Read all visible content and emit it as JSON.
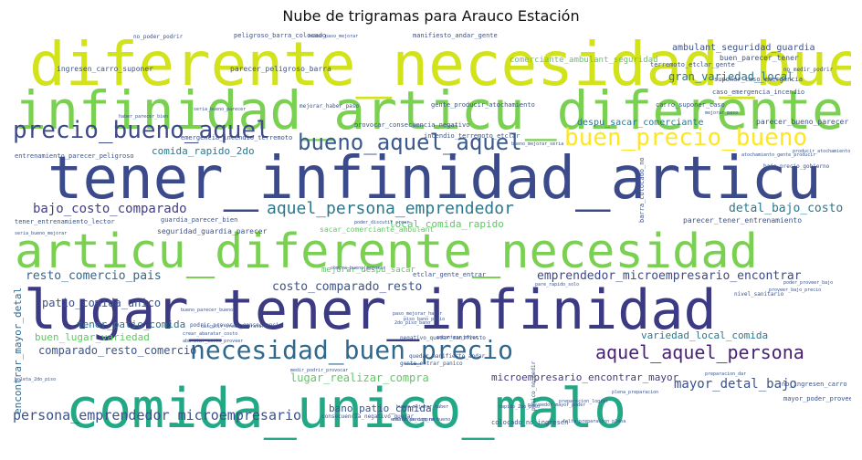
{
  "title": "Nube de trigramas para Arauco Estación",
  "words": [
    {
      "text": "diferente_necesidad_buen",
      "color": "#d2e21b"
    },
    {
      "text": "infinidad_articu_diferente",
      "color": "#7ad151"
    },
    {
      "text": "tener_infinidad_articu",
      "color": "#3b4a8a"
    },
    {
      "text": "articu_diferente_necesidad",
      "color": "#7ad151"
    },
    {
      "text": "lugar_tener_infinidad",
      "color": "#3b3a83"
    },
    {
      "text": "comida_unico_malo",
      "color": "#22a884"
    },
    {
      "text": "necesidad_buen_precio",
      "color": "#31688e"
    },
    {
      "text": "precio_bueno_aquel",
      "color": "#3e4a89"
    },
    {
      "text": "bueno_aquel_aquel",
      "color": "#3b5a8c"
    },
    {
      "text": "buen_precio_bueno",
      "color": "#fde725"
    },
    {
      "text": "aquel_aquel_persona",
      "color": "#482173"
    },
    {
      "text": "aquel_persona_emprendedor",
      "color": "#2a788e"
    },
    {
      "text": "persona_emprendedor_microempresario",
      "color": "#3b528b"
    },
    {
      "text": "emprendedor_microempresario_encontrar",
      "color": "#3e4989"
    },
    {
      "text": "bajo_costo_comparado",
      "color": "#424086"
    },
    {
      "text": "detal_bajo_costo",
      "color": "#2a788e"
    },
    {
      "text": "costo_comparado_resto",
      "color": "#3b528b"
    },
    {
      "text": "resto_comercio_pais",
      "color": "#31688e"
    },
    {
      "text": "patio_comida_unico",
      "color": "#3b528b"
    },
    {
      "text": "variedad_local_comida",
      "color": "#2a788e"
    },
    {
      "text": "microempresario_encontrar_mayor",
      "color": "#443a83"
    },
    {
      "text": "mayor_detal_bajo",
      "color": "#3b528b"
    },
    {
      "text": "comparado_resto_comercio",
      "color": "#3b528b"
    },
    {
      "text": "tener_patio_comida",
      "color": "#2c728e"
    },
    {
      "text": "buen_lugar_variedad",
      "color": "#5ec962"
    },
    {
      "text": "lugar_realizar_compra",
      "color": "#5ec962"
    },
    {
      "text": "bano_patio_comida",
      "color": "#3b528b"
    },
    {
      "text": "encontrar_mayor_detal",
      "color": "#31688e"
    },
    {
      "text": "gran_variedad_local",
      "color": "#2a788e"
    },
    {
      "text": "local_comida_rapido",
      "color": "#5ec962"
    },
    {
      "text": "comida_rapido_2do",
      "color": "#2a788e"
    },
    {
      "text": "ambulant_seguridad_guardia",
      "color": "#3b528b"
    },
    {
      "text": "comerciante_ambulant_seguridad",
      "color": "#5ec962"
    },
    {
      "text": "buen_parecer_tener",
      "color": "#3b528b"
    },
    {
      "text": "despu_sacar_comerciante",
      "color": "#2a788e"
    },
    {
      "text": "sacar_comerciante_ambulant",
      "color": "#5ec962"
    },
    {
      "text": "mejorar_despu_sacar",
      "color": "#5ec962"
    },
    {
      "text": "seguridad_guardia_parecer",
      "color": "#3b528b"
    },
    {
      "text": "parecer_bueno_parecer",
      "color": "#3b528b"
    },
    {
      "text": "parecer_tener_entrenamiento",
      "color": "#3b528b"
    },
    {
      "text": "ingresen_carro_suponer",
      "color": "#3b528b"
    },
    {
      "text": "parecer_peligroso_barra",
      "color": "#3b528b"
    },
    {
      "text": "terremoto_etclar_gente",
      "color": "#3b528b"
    },
    {
      "text": "guardia_parecer_bien",
      "color": "#3b528b"
    },
    {
      "text": "tener_entrenamiento_lector",
      "color": "#3b528b"
    },
    {
      "text": "bajo_precio_gobierno",
      "color": "#3b528b"
    },
    {
      "text": "nivel_sanitario",
      "color": "#3b528b"
    },
    {
      "text": "pare_rapido_solo",
      "color": "#3b528b"
    },
    {
      "text": "boleta_2do_piso",
      "color": "#3b528b"
    },
    {
      "text": "no_poder_podrir",
      "color": "#3b528b"
    },
    {
      "text": "podrir_provocar_consecuencia",
      "color": "#3b528b"
    },
    {
      "text": "provocar_consecuencia_negativo",
      "color": "#3b528b"
    },
    {
      "text": "consecuencia_negativo_quedar",
      "color": "#3b528b"
    },
    {
      "text": "gente_producir_atochamiento",
      "color": "#3b528b"
    },
    {
      "text": "incendio_terremoto_etclar",
      "color": "#3b528b"
    },
    {
      "text": "emergencia_incendio_terremoto",
      "color": "#3b528b"
    },
    {
      "text": "entrenamiento_parecer_peligroso",
      "color": "#3b528b"
    },
    {
      "text": "etclar_gente_entrar",
      "color": "#3b528b"
    },
    {
      "text": "gente_entrar_panico",
      "color": "#3b528b"
    },
    {
      "text": "mejorar_haber_paso",
      "color": "#3b528b"
    },
    {
      "text": "manifiesto_andar_gente",
      "color": "#3b528b"
    },
    {
      "text": "peligroso_barra_colocado",
      "color": "#3b528b"
    },
    {
      "text": "barra_colocado_no",
      "color": "#3b528b"
    },
    {
      "text": "colocado_no_ingresen",
      "color": "#3b528b"
    },
    {
      "text": "no_ingresen_carro",
      "color": "#3b528b"
    },
    {
      "text": "carro_suponer_caso",
      "color": "#3b528b"
    },
    {
      "text": "suponer_caso_emergencia",
      "color": "#3b528b"
    },
    {
      "text": "caso_emergencia_incendio",
      "color": "#3b528b"
    },
    {
      "text": "mayor_poder_proveer",
      "color": "#3b528b"
    },
    {
      "text": "quedar_manifiesto_andar",
      "color": "#3b528b"
    },
    {
      "text": "negativo_quedar_manifiesto",
      "color": "#3b528b"
    },
    {
      "text": "panico_no_medir",
      "color": "#3b528b"
    },
    {
      "text": "no_medir_podrir",
      "color": "#3b528b"
    },
    {
      "text": "bueno_mejorar_haber",
      "color": "#3b528b"
    },
    {
      "text": "poder_discutir_crear",
      "color": "#3b528b"
    },
    {
      "text": "falta_preparacion_plena",
      "color": "#3b528b"
    },
    {
      "text": "realizar_compra_bueno",
      "color": "#3b528b"
    },
    {
      "text": "compra_bueno_mejorar",
      "color": "#3b528b"
    },
    {
      "text": "preparacion_dar",
      "color": "#3b528b"
    },
    {
      "text": "haber_paso_mejorar",
      "color": "#3b528b"
    },
    {
      "text": "producir_atochamiento_gente",
      "color": "#3b528b"
    },
    {
      "text": "atochamiento_gente_producir",
      "color": "#3b528b"
    },
    {
      "text": "seria_bueno_mejorar",
      "color": "#3b528b"
    },
    {
      "text": "bueno_mejorar_seria",
      "color": "#3b528b"
    },
    {
      "text": "bueno_parecer_bueno",
      "color": "#3b528b"
    },
    {
      "text": "paso_mejorar_haber",
      "color": "#3b528b"
    },
    {
      "text": "medir_podrir_provocar",
      "color": "#3b528b"
    },
    {
      "text": "entrar_panico_no",
      "color": "#3b528b"
    },
    {
      "text": "encontrar_mayor",
      "color": "#3b528b"
    },
    {
      "text": "rapido_2do_piso",
      "color": "#3b528b"
    },
    {
      "text": "2do_piso_bano",
      "color": "#3b528b"
    },
    {
      "text": "piso_bano_patio",
      "color": "#3b528b"
    },
    {
      "text": "discutir_crear_abaratar",
      "color": "#3b528b"
    },
    {
      "text": "crear_abaratar_costo",
      "color": "#3b528b"
    },
    {
      "text": "abaratar_costo_proveer",
      "color": "#3b528b"
    },
    {
      "text": "poder_proveer_bajo",
      "color": "#3b528b"
    },
    {
      "text": "proveer_bajo_precio",
      "color": "#3b528b"
    },
    {
      "text": "proveedor_mayor_poder",
      "color": "#3b528b"
    },
    {
      "text": "preparacion_lograr",
      "color": "#3b528b"
    },
    {
      "text": "plena_preparacion",
      "color": "#3b528b"
    },
    {
      "text": "seria_bueno_parecer",
      "color": "#3b528b"
    },
    {
      "text": "haber_parecer_bien",
      "color": "#3b528b"
    },
    {
      "text": "mejorar_paso",
      "color": "#3b528b"
    }
  ]
}
